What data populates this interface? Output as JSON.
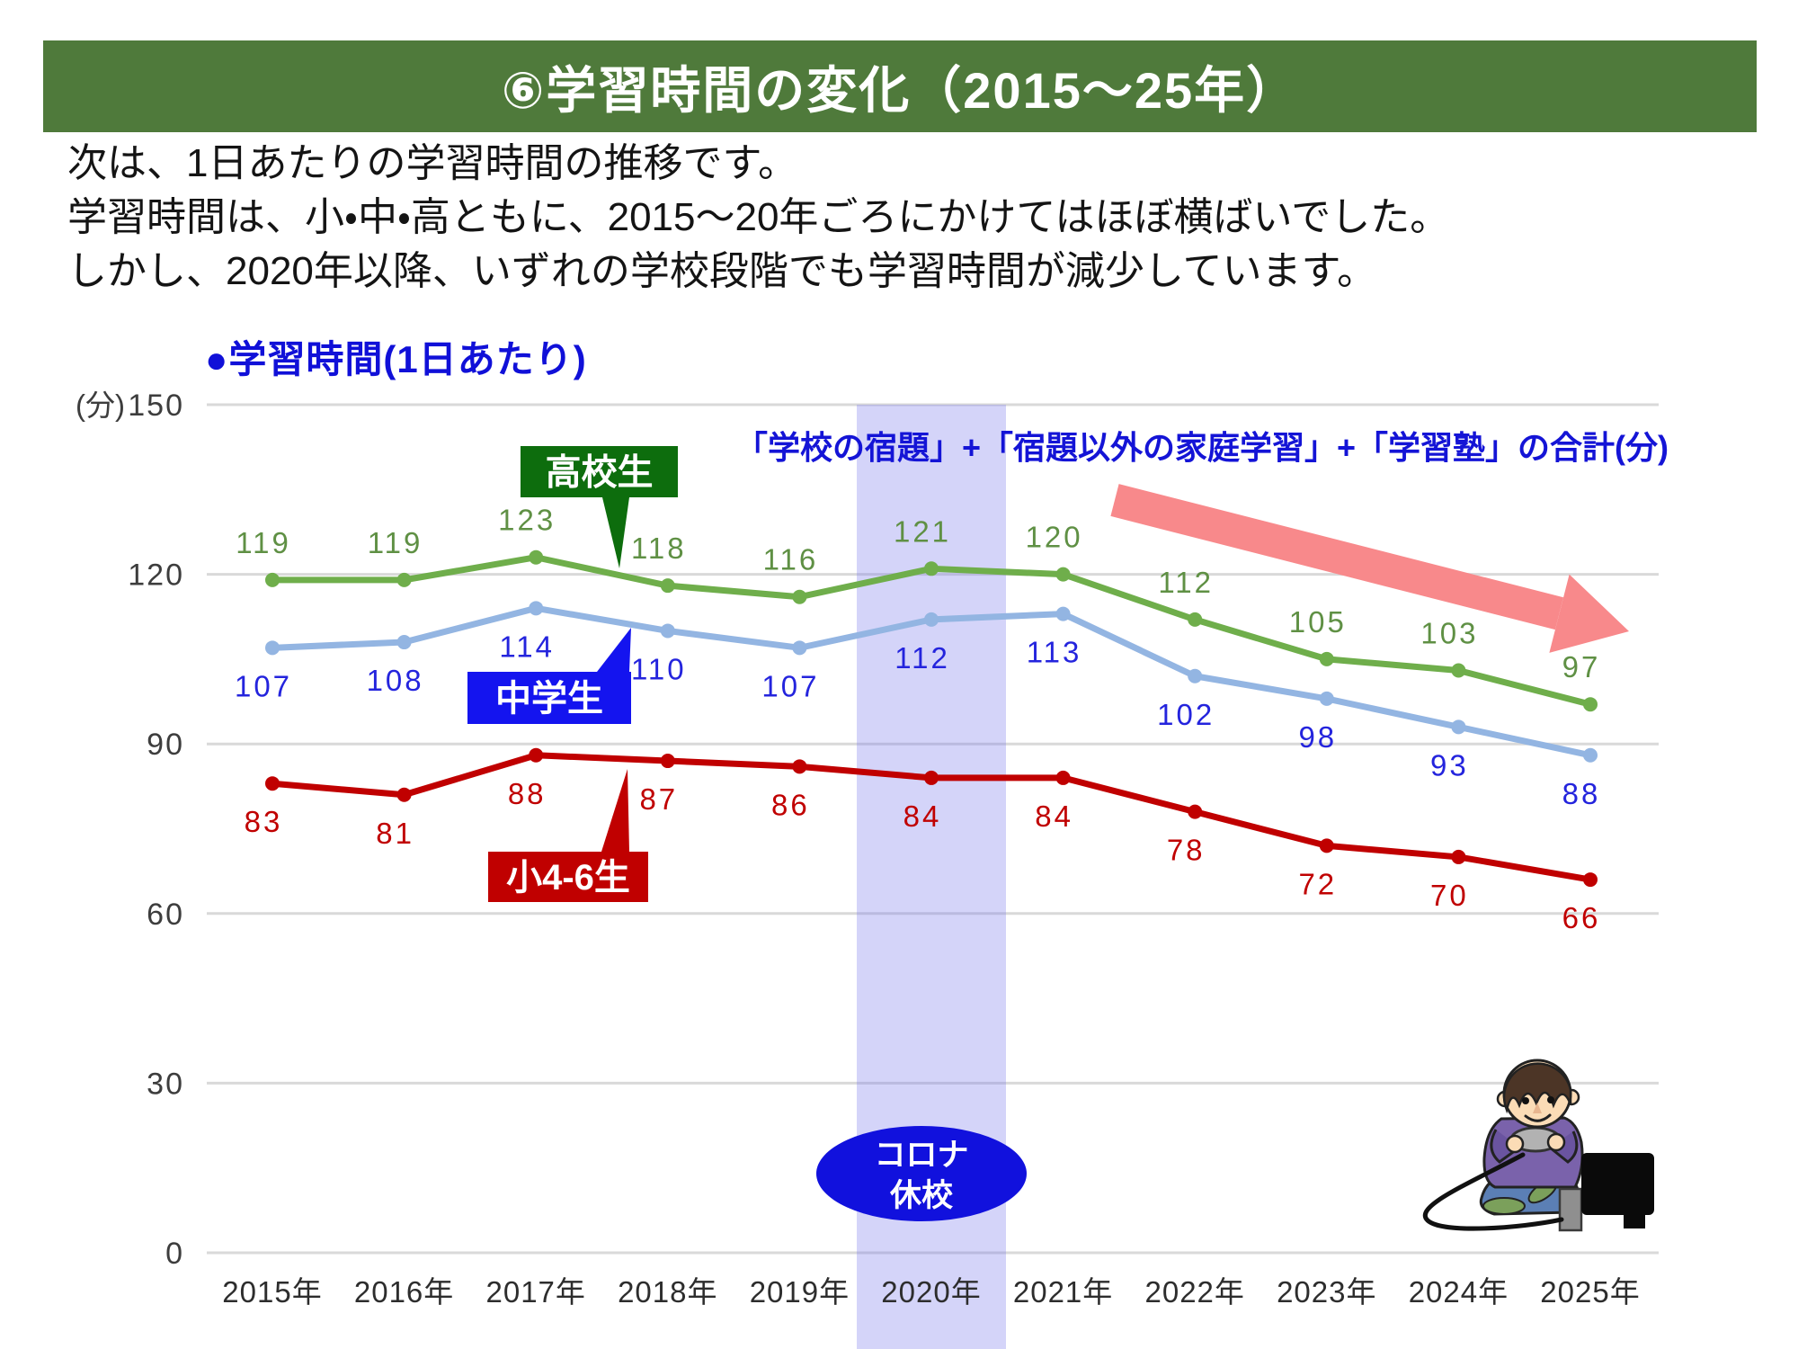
{
  "header": {
    "title": "⑥学習時間の変化（2015～25年）",
    "bg_color": "#4f7a3b"
  },
  "intro": {
    "lines": [
      "次は、1日あたりの学習時間の推移です。",
      "学習時間は、小・中・高ともに、2015～20年ごろにかけてはほぼ横ばいでした。",
      "しかし、2020年以降、いずれの学校段階でも学習時間が減少しています。"
    ]
  },
  "chart": {
    "title": "●学習時間(1日あたり)",
    "title_color": "#1010d8"
  },
  "chart_data": {
    "type": "line",
    "title": "●学習時間(1日あたり)",
    "ylabel": "(分)",
    "ylim": [
      0,
      150
    ],
    "yticks": [
      0,
      30,
      60,
      90,
      120,
      150
    ],
    "grid": true,
    "gridline_color": "#d9d9d9",
    "tick_color": "#3d3d3d",
    "legend_position": "callouts-on-lines",
    "categories": [
      "2015年",
      "2016年",
      "2017年",
      "2018年",
      "2019年",
      "2020年",
      "2021年",
      "2022年",
      "2023年",
      "2024年",
      "2025年"
    ],
    "series": [
      {
        "id": "highschool",
        "name": "高校生",
        "values": [
          119,
          119,
          123,
          118,
          116,
          121,
          120,
          112,
          105,
          103,
          97
        ],
        "line_color": "#6fae4b",
        "label_color": "#5f9044",
        "callout_bg": "#0d6d0d",
        "labels_position": "above"
      },
      {
        "id": "juniorhigh",
        "name": "中学生",
        "values": [
          107,
          108,
          114,
          110,
          107,
          112,
          113,
          102,
          98,
          93,
          88
        ],
        "line_color": "#93b5e2",
        "label_color": "#2424dd",
        "callout_bg": "#1414ef",
        "labels_position": "below"
      },
      {
        "id": "elementary",
        "name": "小4-6生",
        "values": [
          83,
          81,
          88,
          87,
          86,
          84,
          84,
          78,
          72,
          70,
          66
        ],
        "line_color": "#c00000",
        "label_color": "#c00000",
        "callout_bg": "#c00000",
        "labels_position": "below"
      }
    ],
    "annotations": {
      "note": {
        "text": "「学校の宿題」+「宿題以外の家庭学習」+「学習塾」の合計(分)",
        "color": "#1414d6"
      },
      "covid_band": {
        "category": "2020年",
        "band_color": "rgba(122,122,235,0.32)",
        "ellipse_color": "#1111dd",
        "label_lines": [
          "コロナ",
          "休校"
        ],
        "label_text_color": "#ffffff"
      },
      "trend_arrow": {
        "direction": "down-right",
        "color": "#f8898b"
      },
      "illustration": "child-playing-video-game"
    }
  }
}
